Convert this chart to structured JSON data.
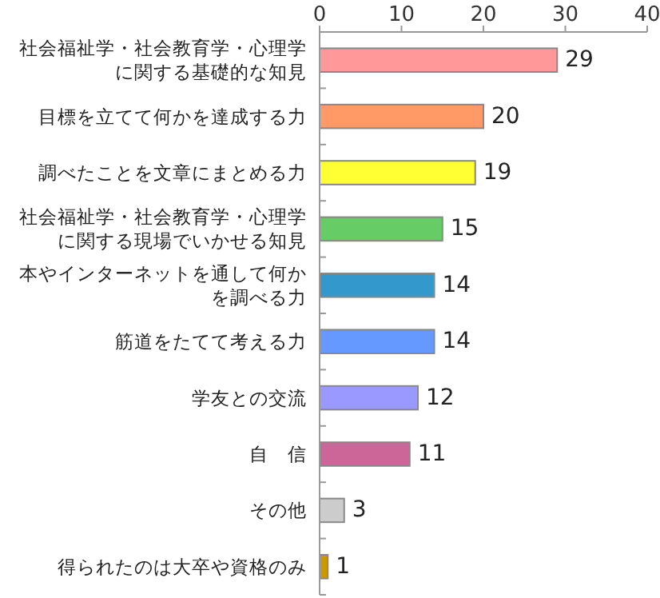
{
  "chart_data": {
    "type": "bar",
    "orientation": "horizontal",
    "categories": [
      "社会福祉学・社会教育学・心理学に関する基礎的な知見",
      "目標を立てて何かを達成する力",
      "調べたことを文章にまとめる力",
      "社会福祉学・社会教育学・心理学に関する現場でいかせる知見",
      "本やインターネットを通して何かを調べる力",
      "筋道をたてて考える力",
      "学友との交流",
      "自　信",
      "その他",
      "得られたのは大卒や資格のみ"
    ],
    "values": [
      29,
      20,
      19,
      15,
      14,
      14,
      12,
      11,
      3,
      1
    ],
    "colors": [
      "#ff9999",
      "#ff9966",
      "#ffff33",
      "#66cc66",
      "#3399cc",
      "#6699ff",
      "#9999ff",
      "#cc6699",
      "#cccccc",
      "#cc9900"
    ],
    "xlim": [
      0,
      40
    ],
    "xticks": [
      0,
      10,
      20,
      30,
      40
    ],
    "data_labels": true,
    "grid": false
  }
}
